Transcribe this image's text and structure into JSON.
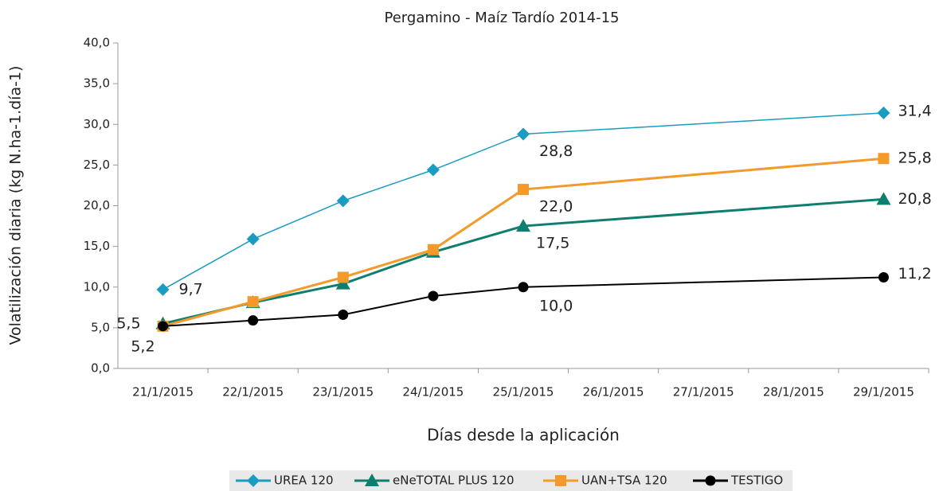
{
  "chart_data": {
    "type": "line",
    "title": "Pergamino - Maíz Tardío 2014-15",
    "ylabel": "Volatilización diaria (kg N.ha-1.día-1)",
    "xlabel": "Días desde la aplicación",
    "xticks": [
      "21/1/2015",
      "22/1/2015",
      "23/1/2015",
      "24/1/2015",
      "25/1/2015",
      "26/1/2015",
      "27/1/2015",
      "28/1/2015",
      "29/1/2015"
    ],
    "x": [
      "21/1/2015",
      "22/1/2015",
      "23/1/2015",
      "24/1/2015",
      "25/1/2015",
      "29/1/2015"
    ],
    "ylim": [
      0,
      40
    ],
    "yticks": [
      {
        "value": 0,
        "label": "0,0"
      },
      {
        "value": 5,
        "label": "5,0"
      },
      {
        "value": 10,
        "label": "10,0"
      },
      {
        "value": 15,
        "label": "15,0"
      },
      {
        "value": 20,
        "label": "20,0"
      },
      {
        "value": 25,
        "label": "25,0"
      },
      {
        "value": 30,
        "label": "30,0"
      },
      {
        "value": 35,
        "label": "35,0"
      },
      {
        "value": 40,
        "label": "40,0"
      }
    ],
    "legend": "bottom",
    "series": [
      {
        "name": "UREA 120",
        "color": "#1a9bc0",
        "marker": "diamond",
        "values": [
          9.7,
          15.9,
          20.6,
          24.4,
          28.8,
          31.4
        ],
        "value_labels": [
          "9,7",
          null,
          null,
          null,
          "28,8",
          "31,4"
        ]
      },
      {
        "name": "eNeTOTAL PLUS 120",
        "color": "#0e7f6e",
        "marker": "triangle",
        "values": [
          5.5,
          8.1,
          10.4,
          14.3,
          17.5,
          20.8
        ],
        "value_labels": [
          "5,5",
          null,
          null,
          null,
          "17,5",
          "20,8"
        ]
      },
      {
        "name": "UAN+TSA 120",
        "color": "#f39a2a",
        "marker": "square",
        "values": [
          5.2,
          8.2,
          11.2,
          14.6,
          22.0,
          25.8
        ],
        "value_labels": [
          "5,2",
          null,
          null,
          null,
          "22,0",
          "25,8"
        ]
      },
      {
        "name": "TESTIGO",
        "color": "#000000",
        "marker": "circle",
        "values": [
          5.2,
          5.9,
          6.6,
          8.9,
          10.0,
          11.2
        ],
        "value_labels": [
          null,
          null,
          null,
          null,
          "10,0",
          "11,2"
        ]
      }
    ]
  }
}
